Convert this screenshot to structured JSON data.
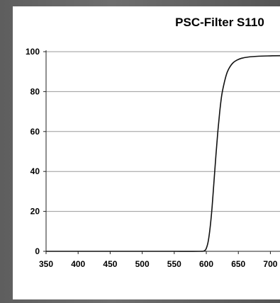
{
  "chart_data": {
    "type": "line",
    "title": "PSC-Filter S110",
    "xlabel": "",
    "ylabel": "",
    "xlim": [
      350,
      715
    ],
    "ylim": [
      0,
      100
    ],
    "x_ticks": [
      350,
      400,
      450,
      500,
      550,
      600,
      650,
      700
    ],
    "y_ticks": [
      0,
      20,
      40,
      60,
      80,
      100
    ],
    "grid": "horizontal",
    "line_color": "#111111",
    "grid_color": "#9a9a9a",
    "series": [
      {
        "x": [
          350,
          400,
          450,
          500,
          550,
          590,
          597,
          600,
          603,
          606,
          609,
          612,
          615,
          618,
          621,
          624,
          627,
          630,
          633,
          637,
          642,
          648,
          655,
          665,
          680,
          700,
          715
        ],
        "y": [
          0,
          0,
          0,
          0,
          0,
          0,
          0.3,
          1.5,
          5,
          12,
          22,
          35,
          48,
          60,
          70,
          78,
          83,
          87,
          90,
          92.5,
          94.5,
          95.8,
          96.7,
          97.3,
          97.7,
          97.9,
          98
        ]
      }
    ]
  }
}
